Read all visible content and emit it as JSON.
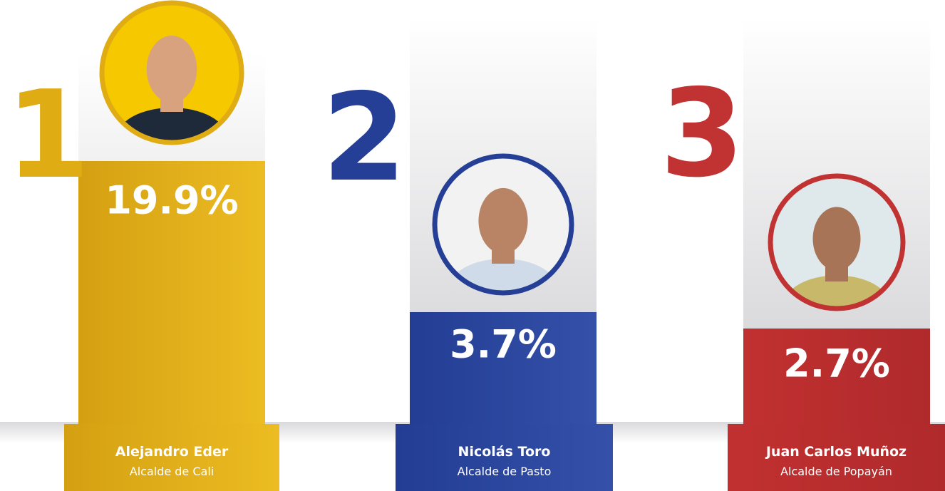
{
  "podium": [
    {
      "rank": "1",
      "percent": "19.9%",
      "name": "Alejandro Eder",
      "role": "Alcalde de Cali"
    },
    {
      "rank": "2",
      "percent": "3.7%",
      "name": "Nicolás Toro",
      "role": "Alcalde de Pasto"
    },
    {
      "rank": "3",
      "percent": "2.7%",
      "name": "Juan Carlos Muñoz",
      "role": "Alcalde de Popayán"
    }
  ]
}
